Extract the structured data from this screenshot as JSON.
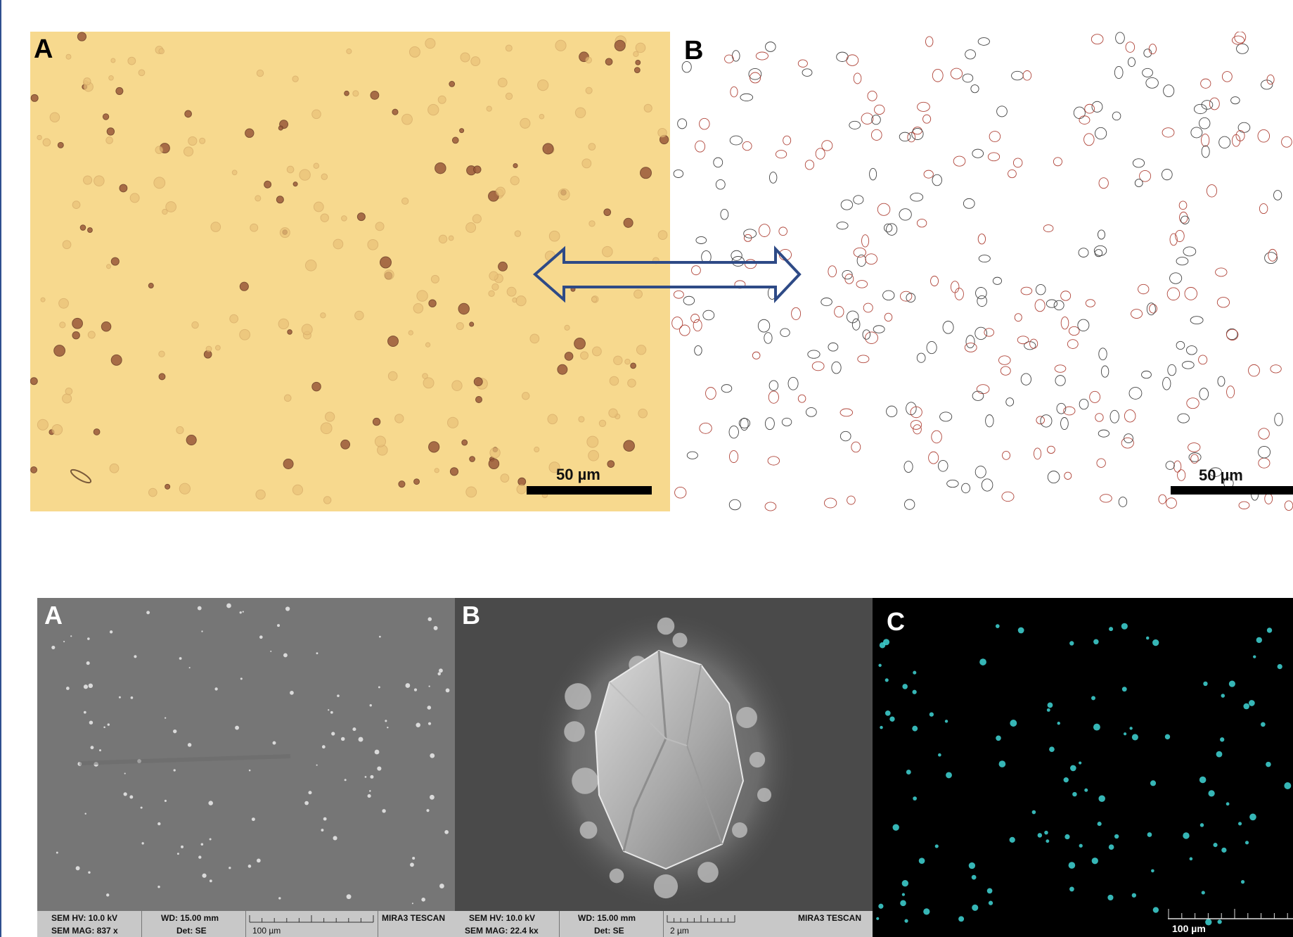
{
  "top_figure": {
    "panel_a": {
      "letter": "A",
      "scale_label": "50 µm"
    },
    "panel_b": {
      "letter": "B",
      "scale_label": "50 µm"
    },
    "arrow_color": "#2e4a86"
  },
  "bottom_figure": {
    "panel_a": {
      "letter": "A",
      "databar": {
        "hv": "SEM HV: 10.0 kV",
        "wd": "WD: 15.00 mm",
        "brand": "MIRA3 TESCAN",
        "mag": "SEM MAG: 837 x",
        "det": "Det: SE",
        "scale": "100 µm"
      }
    },
    "panel_b": {
      "letter": "B",
      "databar": {
        "hv": "SEM HV: 10.0 kV",
        "wd": "WD: 15.00 mm",
        "brand": "MIRA3 TESCAN",
        "mag": "SEM MAG: 22.4 kx",
        "det": "Det: SE",
        "scale": "2 µm"
      }
    },
    "panel_c": {
      "letter": "C",
      "scale_label": "100 µm"
    }
  },
  "colors": {
    "micrograph_bg": "#f7d98e",
    "sem_bg": "#767676",
    "sem_closeup_bg": "#4a4a4a",
    "outline_red": "#b0453a",
    "outline_cyan": "#3fd6d6",
    "frame": "#2f4f8f"
  }
}
